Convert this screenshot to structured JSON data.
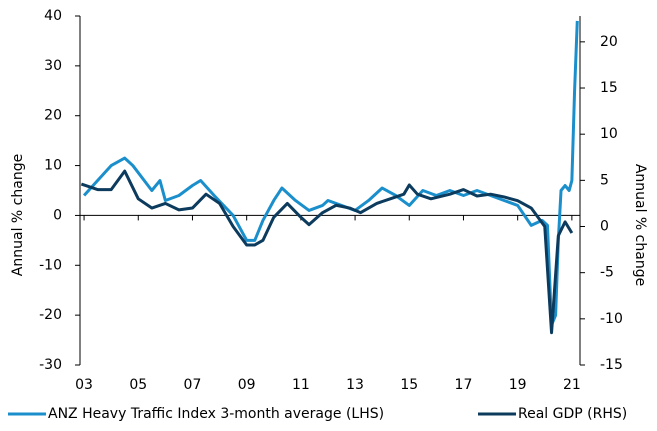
{
  "chart_data": {
    "type": "line",
    "ylabel": "Annual % change",
    "y2label": "Annual % change",
    "xlim": [
      2002.85,
      2021.3
    ],
    "xticks": [
      {
        "value": 2003,
        "label": "03"
      },
      {
        "value": 2005,
        "label": "05"
      },
      {
        "value": 2007,
        "label": "07"
      },
      {
        "value": 2009,
        "label": "09"
      },
      {
        "value": 2011,
        "label": "11"
      },
      {
        "value": 2013,
        "label": "13"
      },
      {
        "value": 2015,
        "label": "15"
      },
      {
        "value": 2017,
        "label": "17"
      },
      {
        "value": 2019,
        "label": "19"
      },
      {
        "value": 2021,
        "label": "21"
      }
    ],
    "ylim": [
      -30,
      40
    ],
    "yticks": [
      -30,
      -20,
      -10,
      0,
      10,
      20,
      30,
      40
    ],
    "y2lim": [
      -15,
      22.8
    ],
    "y2ticks": [
      -15,
      -10,
      -5,
      0,
      5,
      10,
      15,
      20
    ],
    "legend": "bottom",
    "series": [
      {
        "name": "ANZ Heavy Traffic Index 3-month average (LHS)",
        "color": "#1b8fcb",
        "axis": "y",
        "x": [
          2003.0,
          2003.5,
          2004.0,
          2004.5,
          2004.8,
          2005.5,
          2005.8,
          2006.0,
          2006.5,
          2007.0,
          2007.3,
          2007.8,
          2008.5,
          2009.0,
          2009.3,
          2009.6,
          2010.0,
          2010.3,
          2010.8,
          2011.3,
          2011.8,
          2012.0,
          2012.5,
          2013.0,
          2013.5,
          2014.0,
          2014.5,
          2015.0,
          2015.5,
          2016.0,
          2016.5,
          2017.0,
          2017.5,
          2018.0,
          2018.5,
          2019.0,
          2019.5,
          2019.9,
          2020.1,
          2020.25,
          2020.4,
          2020.5,
          2020.6,
          2020.75,
          2020.9,
          2021.0,
          2021.1,
          2021.2
        ],
        "values": [
          4,
          7,
          10,
          11.5,
          10,
          5,
          7,
          3,
          4,
          6,
          7,
          4,
          0,
          -5,
          -5,
          -1,
          3,
          5.5,
          3,
          1,
          2,
          3,
          2,
          1,
          3,
          5.5,
          4,
          2,
          5,
          4,
          5,
          4,
          5,
          4,
          3,
          2,
          -2,
          -1,
          -2,
          -22,
          -20,
          -5,
          5,
          6,
          5,
          7,
          25,
          39
        ]
      },
      {
        "name": "Real GDP (RHS)",
        "color": "#0c3b5e",
        "axis": "y2",
        "x": [
          2002.9,
          2003.5,
          2004.0,
          2004.5,
          2005.0,
          2005.5,
          2006.0,
          2006.5,
          2007.0,
          2007.5,
          2008.0,
          2008.5,
          2009.0,
          2009.3,
          2009.6,
          2010.0,
          2010.5,
          2011.0,
          2011.3,
          2011.8,
          2012.3,
          2012.8,
          2013.2,
          2013.8,
          2014.3,
          2014.8,
          2015.0,
          2015.3,
          2015.8,
          2016.5,
          2017.0,
          2017.5,
          2018.0,
          2018.5,
          2019.0,
          2019.5,
          2020.0,
          2020.25,
          2020.5,
          2020.75,
          2021.0
        ],
        "values": [
          4.6,
          4,
          4,
          6,
          3,
          2,
          2.5,
          1.8,
          2,
          3.5,
          2.5,
          0,
          -2,
          -2,
          -1.5,
          1,
          2.5,
          1,
          0.2,
          1.5,
          2.3,
          2,
          1.5,
          2.5,
          3,
          3.5,
          4.5,
          3.5,
          3,
          3.5,
          4,
          3.3,
          3.5,
          3.2,
          2.8,
          2,
          0,
          -11.5,
          -1,
          0.5,
          -0.7
        ]
      }
    ]
  }
}
